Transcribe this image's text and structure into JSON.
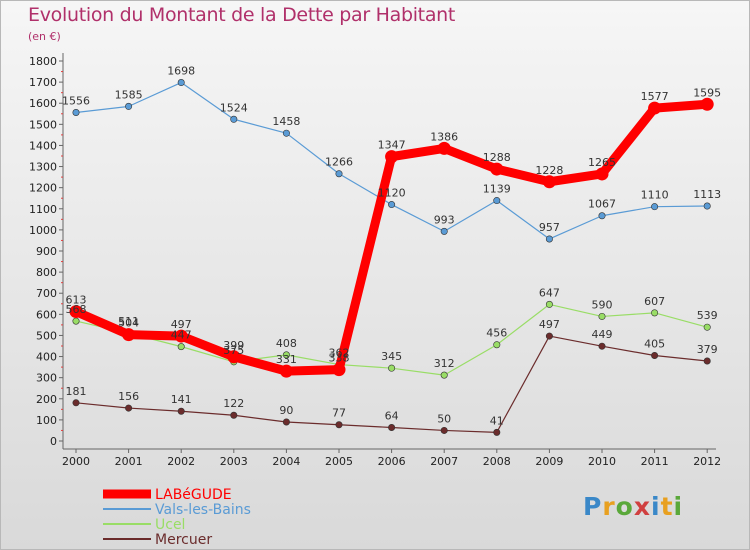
{
  "title": "Evolution du Montant de la Dette par Habitant",
  "subtitle": "(en €)",
  "logo": "Proxiti",
  "chart_data": {
    "type": "line",
    "x": [
      "2000",
      "2001",
      "2002",
      "2003",
      "2004",
      "2005",
      "2006",
      "2007",
      "2008",
      "2009",
      "2010",
      "2011",
      "2012"
    ],
    "ylim": [
      0,
      1800
    ],
    "yticks": [
      0,
      100,
      200,
      300,
      400,
      500,
      600,
      700,
      800,
      900,
      1000,
      1100,
      1200,
      1300,
      1400,
      1500,
      1600,
      1700,
      1800
    ],
    "grid": false,
    "legend_position": "bottom-left",
    "series": [
      {
        "name": "LABéGUDE",
        "color": "#ff0000",
        "values": [
          613,
          504,
          497,
          399,
          331,
          338,
          1347,
          1386,
          1288,
          1228,
          1265,
          1577,
          1595
        ]
      },
      {
        "name": "Vals-les-Bains",
        "color": "#5a9bd5",
        "values": [
          1556,
          1585,
          1698,
          1524,
          1458,
          1266,
          1120,
          993,
          1139,
          957,
          1067,
          1110,
          1113
        ]
      },
      {
        "name": "Ucel",
        "color": "#99dd66",
        "values": [
          568,
          511,
          447,
          375,
          408,
          362,
          345,
          312,
          456,
          647,
          590,
          607,
          539
        ]
      },
      {
        "name": "Mercuer",
        "color": "#6b2c2c",
        "values": [
          181,
          156,
          141,
          122,
          90,
          77,
          64,
          50,
          41,
          497,
          449,
          405,
          379
        ]
      }
    ]
  }
}
